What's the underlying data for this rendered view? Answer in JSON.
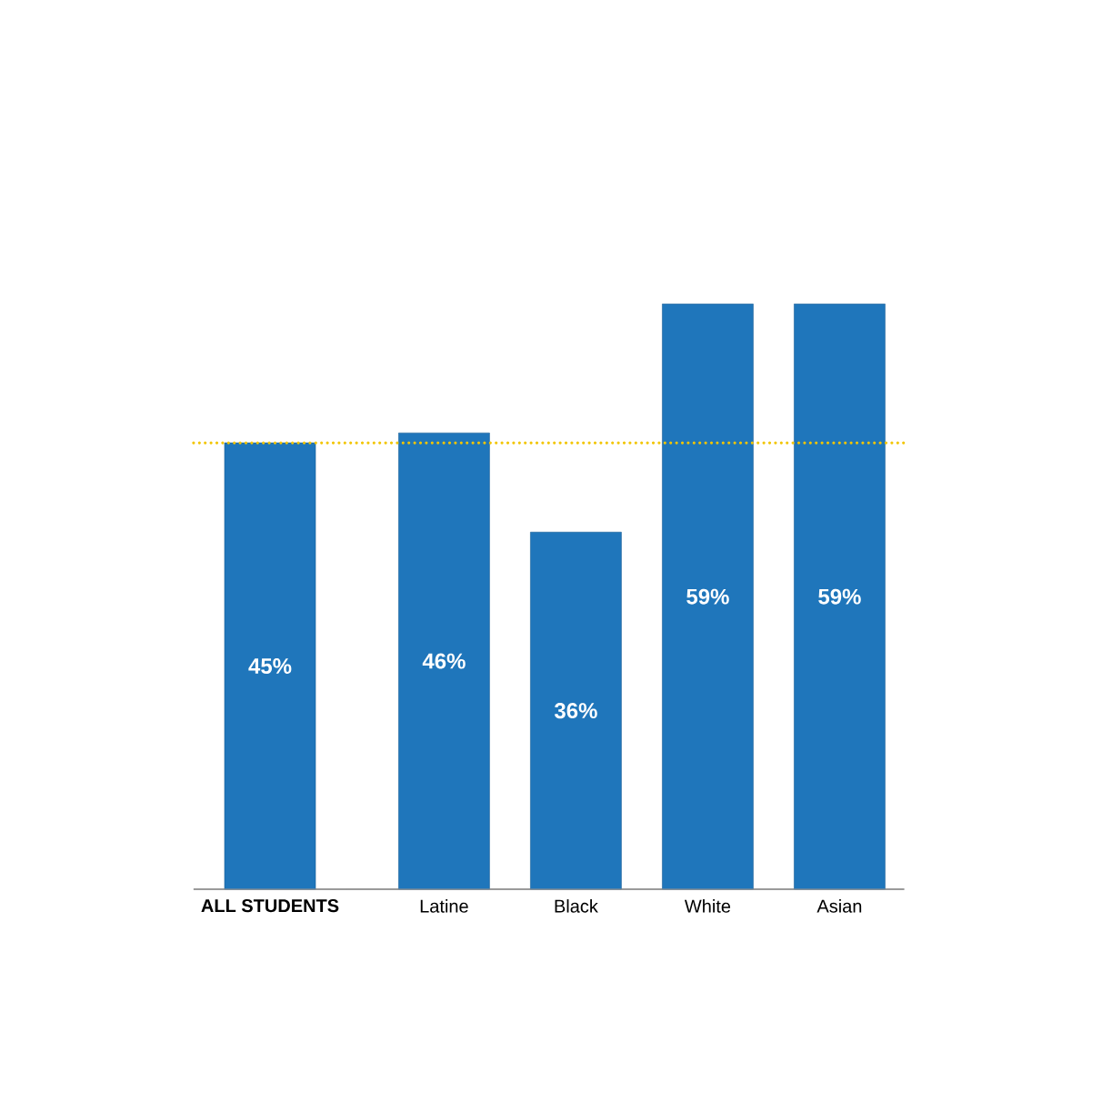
{
  "chart_data": {
    "type": "bar",
    "categories": [
      "ALL STUDENTS",
      "Latine",
      "Black",
      "White",
      "Asian"
    ],
    "values": [
      45,
      46,
      36,
      59,
      59
    ],
    "value_labels": [
      "45%",
      "46%",
      "36%",
      "59%",
      "59%"
    ],
    "color": "#1f76bb",
    "ref_lines": [
      {
        "axis": "y",
        "value": 45,
        "color": "#f2c500",
        "line_style": "dotted"
      }
    ]
  }
}
